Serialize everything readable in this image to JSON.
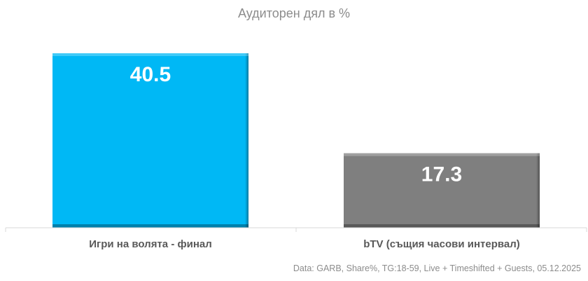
{
  "chart_data": {
    "type": "bar",
    "title": "Аудиторен дял в %",
    "categories": [
      "Игри на волята - финал",
      "bTV (същия часови интервал)"
    ],
    "values": [
      40.5,
      17.3
    ],
    "colors": [
      "#00b8f5",
      "#7f7f7f"
    ],
    "ylim": [
      0,
      40.5
    ],
    "grid": false,
    "legend": "none",
    "source": "Data: GARB, Share%, TG:18-59, Live + Timeshifted + Guests, 05.12.2025"
  }
}
